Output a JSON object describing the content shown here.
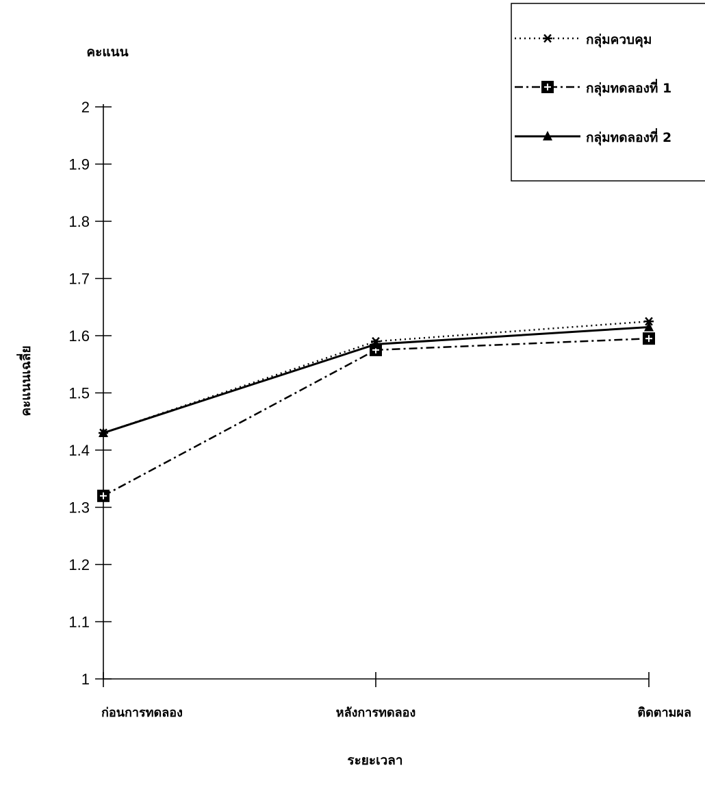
{
  "chart_data": {
    "type": "line",
    "categories": [
      "ก่อนการทดลอง",
      "หลังการทดลอง",
      "ติดตามผล"
    ],
    "series": [
      {
        "name": "กลุ่มควบคุม",
        "values": [
          1.43,
          1.59,
          1.625
        ],
        "line_style": "dotted",
        "marker": "asterisk",
        "color": "#000000"
      },
      {
        "name": "กลุ่มทดลองที่ 1",
        "values": [
          1.32,
          1.575,
          1.595
        ],
        "line_style": "dash-dot",
        "marker": "square-plus",
        "color": "#000000"
      },
      {
        "name": "กลุ่มทดลองที่ 2",
        "values": [
          1.43,
          1.585,
          1.615
        ],
        "line_style": "solid",
        "marker": "triangle",
        "color": "#000000"
      }
    ],
    "ylim": [
      1,
      2
    ],
    "yticks": [
      "1",
      "1.1",
      "1.2",
      "1.3",
      "1.4",
      "1.5",
      "1.6",
      "1.7",
      "1.8",
      "1.9",
      "2"
    ],
    "ylabel": "คะแนนเฉลี่ย",
    "ylabel_top": "คะแนน",
    "xlabel": "ระยะเวลา",
    "legend_position": "top-right",
    "grid": false
  }
}
